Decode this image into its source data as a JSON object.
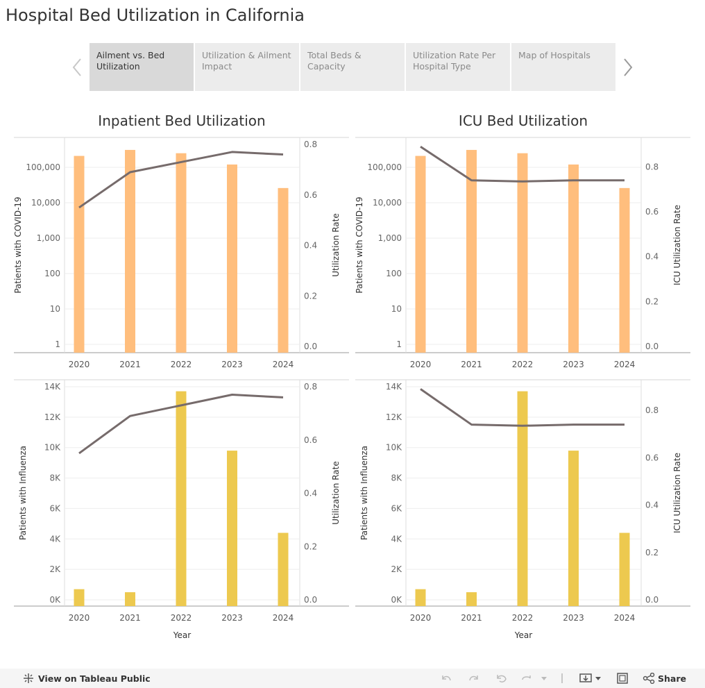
{
  "title": "Hospital Bed Utilization in California",
  "tabs": [
    {
      "label": "Ailment vs. Bed Utilization",
      "active": true
    },
    {
      "label": "Utilization & Ailment Impact",
      "active": false
    },
    {
      "label": "Total Beds & Capacity",
      "active": false
    },
    {
      "label": "Utilization Rate Per Hospital Type",
      "active": false
    },
    {
      "label": "Map of Hospitals",
      "active": false
    }
  ],
  "panel_titles": {
    "left": "Inpatient Bed Utilization",
    "right": "ICU Bed Utilization"
  },
  "colors": {
    "covid_bar": "#ffbe7d",
    "flu_bar": "#edc94f",
    "line": "#766b6b",
    "grid": "#eeeeee",
    "axis": "#999999"
  },
  "footer": {
    "view_label": "View on Tableau Public",
    "share_label": "Share"
  },
  "chart_data": [
    {
      "type": "bar+line",
      "name": "inpatient-covid",
      "categories": [
        "2020",
        "2021",
        "2022",
        "2023",
        "2024"
      ],
      "bar_series": {
        "name": "Patients with COVID-19",
        "values": [
          210000,
          310000,
          250000,
          120000,
          26000
        ],
        "scale": "log"
      },
      "line_series": {
        "name": "Utilization Rate",
        "values": [
          0.55,
          0.69,
          0.73,
          0.77,
          0.76
        ]
      },
      "ylabel_left": "Patients with COVID-19",
      "ylabel_right": "Utilization Rate",
      "left_ticks": [
        "1",
        "10",
        "100",
        "1,000",
        "10,000",
        "100,000"
      ],
      "right_ticks": [
        "0.0",
        "0.2",
        "0.4",
        "0.6",
        "0.8"
      ],
      "ylim_right": [
        0,
        0.8
      ],
      "xlabel": ""
    },
    {
      "type": "bar+line",
      "name": "icu-covid",
      "categories": [
        "2020",
        "2021",
        "2022",
        "2023",
        "2024"
      ],
      "bar_series": {
        "name": "Patients with COVID-19",
        "values": [
          210000,
          310000,
          250000,
          120000,
          26000
        ],
        "scale": "log"
      },
      "line_series": {
        "name": "ICU Utilization Rate",
        "values": [
          0.89,
          0.74,
          0.735,
          0.74,
          0.74
        ]
      },
      "ylabel_left": "Patients with COVID-19",
      "ylabel_right": "ICU Utilization Rate",
      "left_ticks": [
        "1",
        "10",
        "100",
        "1,000",
        "10,000",
        "100,000"
      ],
      "right_ticks": [
        "0.0",
        "0.2",
        "0.4",
        "0.6",
        "0.8"
      ],
      "ylim_right": [
        0,
        0.9
      ],
      "xlabel": ""
    },
    {
      "type": "bar+line",
      "name": "inpatient-flu",
      "categories": [
        "2020",
        "2021",
        "2022",
        "2023",
        "2024"
      ],
      "bar_series": {
        "name": "Patients with Influenza",
        "values": [
          700,
          500,
          13700,
          9800,
          4400
        ],
        "scale": "linear"
      },
      "line_series": {
        "name": "Utilization Rate",
        "values": [
          0.55,
          0.69,
          0.73,
          0.77,
          0.76
        ]
      },
      "ylabel_left": "Patients with Influenza",
      "ylabel_right": "Utilization Rate",
      "left_ticks": [
        "0K",
        "2K",
        "4K",
        "6K",
        "8K",
        "10K",
        "12K",
        "14K"
      ],
      "right_ticks": [
        "0.0",
        "0.2",
        "0.4",
        "0.6",
        "0.8"
      ],
      "ylim_left": [
        0,
        14000
      ],
      "ylim_right": [
        0,
        0.8
      ],
      "xlabel": "Year"
    },
    {
      "type": "bar+line",
      "name": "icu-flu",
      "categories": [
        "2020",
        "2021",
        "2022",
        "2023",
        "2024"
      ],
      "bar_series": {
        "name": "Patients with Influenza",
        "values": [
          700,
          500,
          13700,
          9800,
          4400
        ],
        "scale": "linear"
      },
      "line_series": {
        "name": "ICU Utilization Rate",
        "values": [
          0.89,
          0.74,
          0.735,
          0.74,
          0.74
        ]
      },
      "ylabel_left": "Patients with Influenza",
      "ylabel_right": "ICU Utilization Rate",
      "left_ticks": [
        "0K",
        "2K",
        "4K",
        "6K",
        "8K",
        "10K",
        "12K",
        "14K"
      ],
      "right_ticks": [
        "0.0",
        "0.2",
        "0.4",
        "0.6",
        "0.8"
      ],
      "ylim_left": [
        0,
        14000
      ],
      "ylim_right": [
        0,
        0.9
      ],
      "xlabel": "Year"
    }
  ]
}
